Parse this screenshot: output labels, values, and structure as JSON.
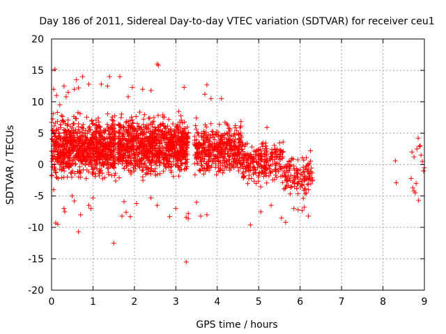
{
  "chart_data": {
    "type": "scatter",
    "title": "Day 186 of 2011, Sidereal Day-to-day VTEC variation (SDTVAR) for receiver ceu1",
    "xlabel": "GPS time / hours",
    "ylabel": "SDTVAR / TECUs",
    "xlim": [
      0,
      9
    ],
    "ylim": [
      -20,
      20
    ],
    "xticks": [
      0,
      1,
      2,
      3,
      4,
      5,
      6,
      7,
      8,
      9
    ],
    "yticks": [
      -20,
      -15,
      -10,
      -5,
      0,
      5,
      10,
      15,
      20
    ],
    "grid": true,
    "marker": "+",
    "series_color": "#ff0000",
    "series": [
      {
        "name": "SDTVAR",
        "points": [
          [
            0.08,
            15.2
          ],
          [
            0.05,
            12.0
          ],
          [
            0.12,
            11.0
          ],
          [
            0.2,
            9.5
          ],
          [
            0.3,
            12.5
          ],
          [
            0.35,
            10.8
          ],
          [
            0.4,
            11.5
          ],
          [
            0.55,
            12.0
          ],
          [
            0.6,
            13.5
          ],
          [
            0.65,
            12.2
          ],
          [
            0.75,
            14.0
          ],
          [
            0.9,
            12.8
          ],
          [
            1.2,
            12.8
          ],
          [
            1.35,
            12.5
          ],
          [
            1.4,
            14.0
          ],
          [
            1.65,
            14.0
          ],
          [
            2.55,
            16.0
          ],
          [
            2.58,
            15.8
          ],
          [
            1.85,
            10.8
          ],
          [
            1.95,
            12.3
          ],
          [
            2.2,
            12.0
          ],
          [
            2.4,
            11.8
          ],
          [
            3.2,
            12.3
          ],
          [
            3.75,
            12.7
          ],
          [
            3.7,
            11.2
          ],
          [
            3.85,
            10.5
          ],
          [
            4.1,
            10.5
          ],
          [
            0.05,
            -4.0
          ],
          [
            0.1,
            -9.3
          ],
          [
            0.15,
            -9.5
          ],
          [
            0.3,
            -7.0
          ],
          [
            0.32,
            -7.5
          ],
          [
            0.5,
            -5.0
          ],
          [
            0.55,
            -5.8
          ],
          [
            0.65,
            -10.7
          ],
          [
            0.7,
            -8.0
          ],
          [
            0.9,
            -6.5
          ],
          [
            0.95,
            -7.0
          ],
          [
            1.0,
            -5.3
          ],
          [
            1.5,
            -12.5
          ],
          [
            1.7,
            -8.2
          ],
          [
            1.75,
            -5.9
          ],
          [
            1.8,
            -7.6
          ],
          [
            1.9,
            -8.3
          ],
          [
            2.05,
            -6.2
          ],
          [
            2.4,
            -5.3
          ],
          [
            2.55,
            -6.5
          ],
          [
            2.85,
            -8.3
          ],
          [
            3.0,
            -7.0
          ],
          [
            3.25,
            -8.4
          ],
          [
            3.3,
            -8.6
          ],
          [
            3.25,
            -15.5
          ],
          [
            3.5,
            -6.0
          ],
          [
            3.6,
            -8.2
          ],
          [
            3.75,
            -8.0
          ],
          [
            3.3,
            -7.8
          ],
          [
            4.8,
            -9.6
          ],
          [
            5.05,
            -7.5
          ],
          [
            5.3,
            -6.5
          ],
          [
            5.55,
            -8.5
          ],
          [
            5.65,
            -9.2
          ],
          [
            5.85,
            -7.0
          ],
          [
            5.95,
            -7.2
          ],
          [
            6.05,
            -7.3
          ],
          [
            6.1,
            -6.8
          ],
          [
            6.2,
            -8.2
          ],
          [
            6.25,
            2.2
          ],
          [
            5.2,
            5.9
          ],
          [
            5.4,
            2.5
          ],
          [
            5.8,
            1.0
          ],
          [
            6.1,
            -2.5
          ],
          [
            6.2,
            -4.0
          ],
          [
            8.3,
            0.6
          ],
          [
            8.32,
            -2.9
          ],
          [
            8.75,
            -4.2
          ],
          [
            8.72,
            -3.7
          ],
          [
            8.78,
            -4.5
          ],
          [
            8.8,
            -3.0
          ],
          [
            8.82,
            2.5
          ],
          [
            8.85,
            4.2
          ],
          [
            8.88,
            2.9
          ],
          [
            8.9,
            3.0
          ],
          [
            8.92,
            1.5
          ],
          [
            8.86,
            -5.7
          ],
          [
            8.95,
            0.5
          ],
          [
            8.98,
            -1.0
          ],
          [
            9.0,
            -0.5
          ],
          [
            8.7,
            2.0
          ],
          [
            8.68,
            -2.2
          ],
          [
            8.75,
            1.2
          ]
        ]
      }
    ],
    "dense_clusters": [
      {
        "x": [
          0.0,
          1.55
        ],
        "y": [
          -3.5,
          9.0
        ],
        "count": 900
      },
      {
        "x": [
          1.6,
          3.3
        ],
        "y": [
          -3.0,
          9.0
        ],
        "count": 1000
      },
      {
        "x": [
          3.45,
          4.6
        ],
        "y": [
          -3.0,
          8.0
        ],
        "count": 450
      },
      {
        "x": [
          4.6,
          5.6
        ],
        "y": [
          -4.0,
          4.5
        ],
        "count": 260
      },
      {
        "x": [
          5.6,
          6.3
        ],
        "y": [
          -6.0,
          2.5
        ],
        "count": 130
      }
    ]
  }
}
